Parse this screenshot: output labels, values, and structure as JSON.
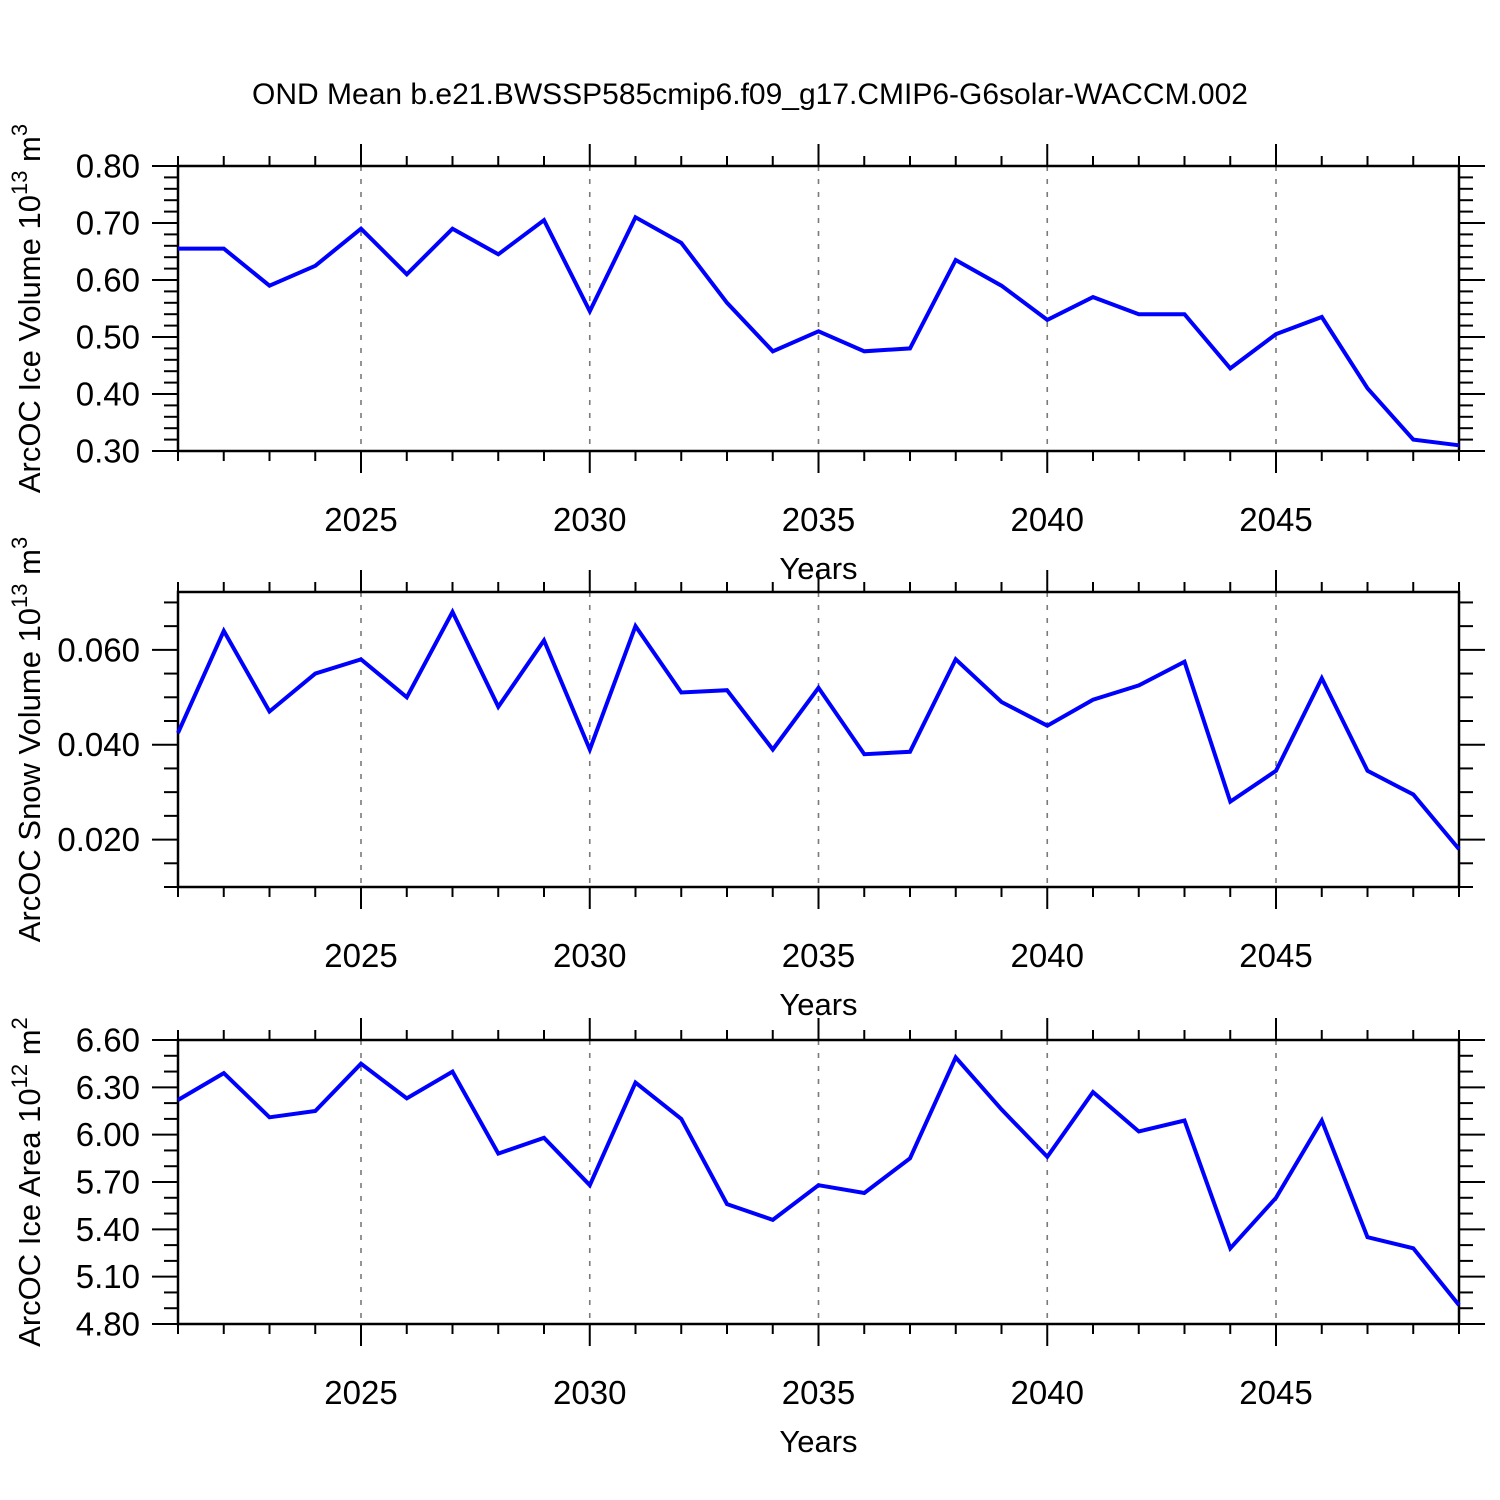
{
  "title": "OND Mean b.e21.BWSSP585cmip6.f09_g17.CMIP6-G6solar-WACCM.002",
  "colors": {
    "line": "#0000ff",
    "axis": "#000000",
    "grid": "#7a7a7a",
    "background": "#ffffff"
  },
  "chart_data": [
    {
      "id": "ice-volume",
      "type": "line",
      "xlabel": "Years",
      "ylabel": "ArcOC Ice Volume 10^13 m^3",
      "ylabel_parts": [
        {
          "text": "ArcOC Ice Volume 10",
          "sup": false
        },
        {
          "text": "13",
          "sup": true
        },
        {
          "text": " m",
          "sup": false
        },
        {
          "text": "3",
          "sup": true
        }
      ],
      "xlim": [
        2021,
        2049
      ],
      "ylim": [
        0.3,
        0.8
      ],
      "xticks": [
        2025,
        2030,
        2035,
        2040,
        2045
      ],
      "xtick_labels": [
        "2025",
        "2030",
        "2035",
        "2040",
        "2045"
      ],
      "yticks": [
        0.3,
        0.4,
        0.5,
        0.6,
        0.7,
        0.8
      ],
      "ytick_labels": [
        "0.30",
        "0.40",
        "0.50",
        "0.60",
        "0.70",
        "0.80"
      ],
      "yminor_step": 0.02,
      "grid": "dashed-vertical-at-major-xticks",
      "legend": "none",
      "x": [
        2021,
        2022,
        2023,
        2024,
        2025,
        2026,
        2027,
        2028,
        2029,
        2030,
        2031,
        2032,
        2033,
        2034,
        2035,
        2036,
        2037,
        2038,
        2039,
        2040,
        2041,
        2042,
        2043,
        2044,
        2045,
        2046,
        2047,
        2048,
        2049
      ],
      "values": [
        0.655,
        0.655,
        0.59,
        0.625,
        0.69,
        0.61,
        0.69,
        0.645,
        0.705,
        0.545,
        0.71,
        0.665,
        0.56,
        0.475,
        0.51,
        0.475,
        0.48,
        0.635,
        0.59,
        0.53,
        0.57,
        0.54,
        0.54,
        0.445,
        0.505,
        0.535,
        0.41,
        0.32,
        0.31
      ]
    },
    {
      "id": "snow-volume",
      "type": "line",
      "xlabel": "Years",
      "ylabel": "ArcOC Snow Volume 10^13 m^3",
      "ylabel_parts": [
        {
          "text": "ArcOC Snow Volume 10",
          "sup": false
        },
        {
          "text": "13",
          "sup": true
        },
        {
          "text": " m",
          "sup": false
        },
        {
          "text": "3",
          "sup": true
        }
      ],
      "xlim": [
        2021,
        2049
      ],
      "ylim": [
        0.01,
        0.0722
      ],
      "xticks": [
        2025,
        2030,
        2035,
        2040,
        2045
      ],
      "xtick_labels": [
        "2025",
        "2030",
        "2035",
        "2040",
        "2045"
      ],
      "yticks": [
        0.02,
        0.04,
        0.06
      ],
      "ytick_labels": [
        "0.020",
        "0.040",
        "0.060"
      ],
      "yminor_step": 0.005,
      "grid": "dashed-vertical-at-major-xticks",
      "legend": "none",
      "x": [
        2021,
        2022,
        2023,
        2024,
        2025,
        2026,
        2027,
        2028,
        2029,
        2030,
        2031,
        2032,
        2033,
        2034,
        2035,
        2036,
        2037,
        2038,
        2039,
        2040,
        2041,
        2042,
        2043,
        2044,
        2045,
        2046,
        2047,
        2048,
        2049
      ],
      "values": [
        0.0425,
        0.064,
        0.047,
        0.055,
        0.058,
        0.05,
        0.068,
        0.048,
        0.062,
        0.039,
        0.065,
        0.051,
        0.0515,
        0.039,
        0.052,
        0.038,
        0.0385,
        0.058,
        0.049,
        0.044,
        0.0495,
        0.0525,
        0.0575,
        0.028,
        0.0345,
        0.054,
        0.0345,
        0.0295,
        0.018
      ]
    },
    {
      "id": "ice-area",
      "type": "line",
      "xlabel": "Years",
      "ylabel": "ArcOC Ice Area 10^12 m^2",
      "ylabel_parts": [
        {
          "text": "ArcOC Ice Area 10",
          "sup": false
        },
        {
          "text": "12",
          "sup": true
        },
        {
          "text": " m",
          "sup": false
        },
        {
          "text": "2",
          "sup": true
        }
      ],
      "xlim": [
        2021,
        2049
      ],
      "ylim": [
        4.8,
        6.6
      ],
      "xticks": [
        2025,
        2030,
        2035,
        2040,
        2045
      ],
      "xtick_labels": [
        "2025",
        "2030",
        "2035",
        "2040",
        "2045"
      ],
      "yticks": [
        4.8,
        5.1,
        5.4,
        5.7,
        6.0,
        6.3,
        6.6
      ],
      "ytick_labels": [
        "4.80",
        "5.10",
        "5.40",
        "5.70",
        "6.00",
        "6.30",
        "6.60"
      ],
      "yminor_step": 0.1,
      "grid": "dashed-vertical-at-major-xticks",
      "legend": "none",
      "x": [
        2021,
        2022,
        2023,
        2024,
        2025,
        2026,
        2027,
        2028,
        2029,
        2030,
        2031,
        2032,
        2033,
        2034,
        2035,
        2036,
        2037,
        2038,
        2039,
        2040,
        2041,
        2042,
        2043,
        2044,
        2045,
        2046,
        2047,
        2048,
        2049
      ],
      "values": [
        6.22,
        6.39,
        6.11,
        6.15,
        6.45,
        6.23,
        6.4,
        5.88,
        5.98,
        5.68,
        6.33,
        6.1,
        5.56,
        5.46,
        5.68,
        5.63,
        5.85,
        6.49,
        6.16,
        5.86,
        6.27,
        6.02,
        6.09,
        5.28,
        5.6,
        6.09,
        5.35,
        5.28,
        4.92
      ]
    }
  ]
}
